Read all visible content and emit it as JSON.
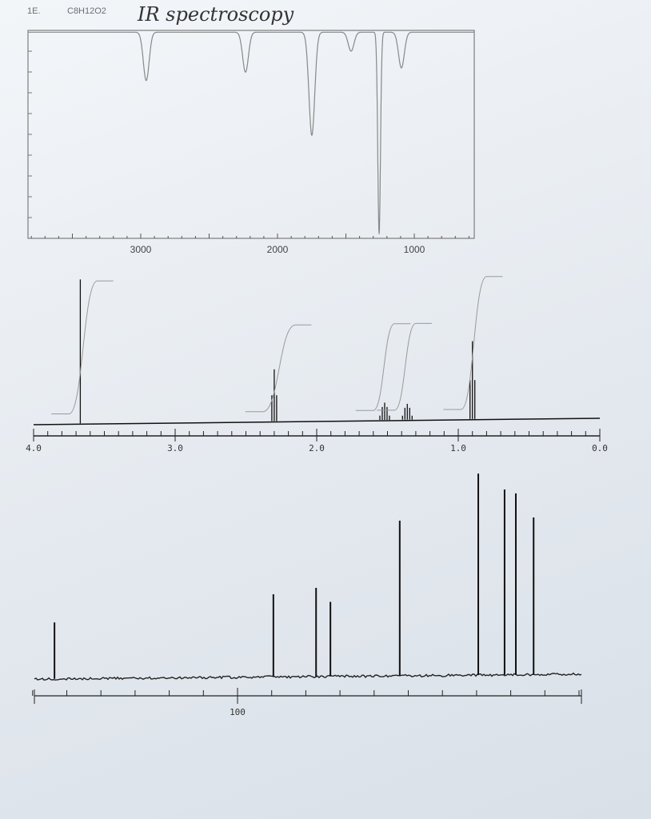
{
  "header": {
    "problem": "1E.",
    "formula": "C8H12O2",
    "handwritten_note": "IR spectroscopy"
  },
  "chart_data": [
    {
      "type": "line",
      "name_printed": "",
      "xlabel": "",
      "ylabel": "",
      "xlim": [
        3825,
        560
      ],
      "ylim": [
        0,
        100
      ],
      "grid": false,
      "x_ticks": [
        "3000",
        "2000",
        "1000"
      ],
      "peaks": [
        {
          "x": 2960,
          "y": 75
        },
        {
          "x": 2234,
          "y": 79
        },
        {
          "x": 1749,
          "y": 49
        },
        {
          "x": 1462,
          "y": 89
        },
        {
          "x": 1257,
          "y": 2
        },
        {
          "x": 1094,
          "y": 81
        }
      ],
      "baseline": 98
    },
    {
      "type": "line",
      "xlabel": "",
      "ylabel": "",
      "xlim": [
        4.0,
        0.0
      ],
      "grid": false,
      "x_ticks": [
        "4.0",
        "3.0",
        "2.0",
        "1.0",
        "0.0"
      ],
      "peaks": [
        {
          "x": 3.67,
          "height": 1.0,
          "mult": 1
        },
        {
          "x": 2.3,
          "height": 0.36,
          "mult": 3
        },
        {
          "x": 1.52,
          "height": 0.12,
          "mult": 5
        },
        {
          "x": 1.36,
          "height": 0.11,
          "mult": 5
        },
        {
          "x": 0.9,
          "height": 0.54,
          "mult": 3
        }
      ],
      "integrals": [
        {
          "from": 3.75,
          "to": 3.55,
          "rise": 0.95
        },
        {
          "from": 2.38,
          "to": 2.15,
          "rise": 0.62
        },
        {
          "from": 1.6,
          "to": 1.45,
          "rise": 0.62
        },
        {
          "from": 1.45,
          "to": 1.3,
          "rise": 0.62
        },
        {
          "from": 0.98,
          "to": 0.8,
          "rise": 0.95
        }
      ]
    },
    {
      "type": "line",
      "xlabel": "",
      "ylabel": "",
      "xlim": [
        160,
        0
      ],
      "grid": false,
      "x_ticks": [
        "100"
      ],
      "peaks": [
        {
          "x": 153.6,
          "height": 0.28
        },
        {
          "x": 89.5,
          "height": 0.41
        },
        {
          "x": 77.0,
          "height": 0.44
        },
        {
          "x": 72.8,
          "height": 0.37
        },
        {
          "x": 52.5,
          "height": 0.77
        },
        {
          "x": 29.5,
          "height": 1.0
        },
        {
          "x": 21.8,
          "height": 0.92
        },
        {
          "x": 18.5,
          "height": 0.9
        },
        {
          "x": 13.3,
          "height": 0.78
        }
      ]
    }
  ]
}
